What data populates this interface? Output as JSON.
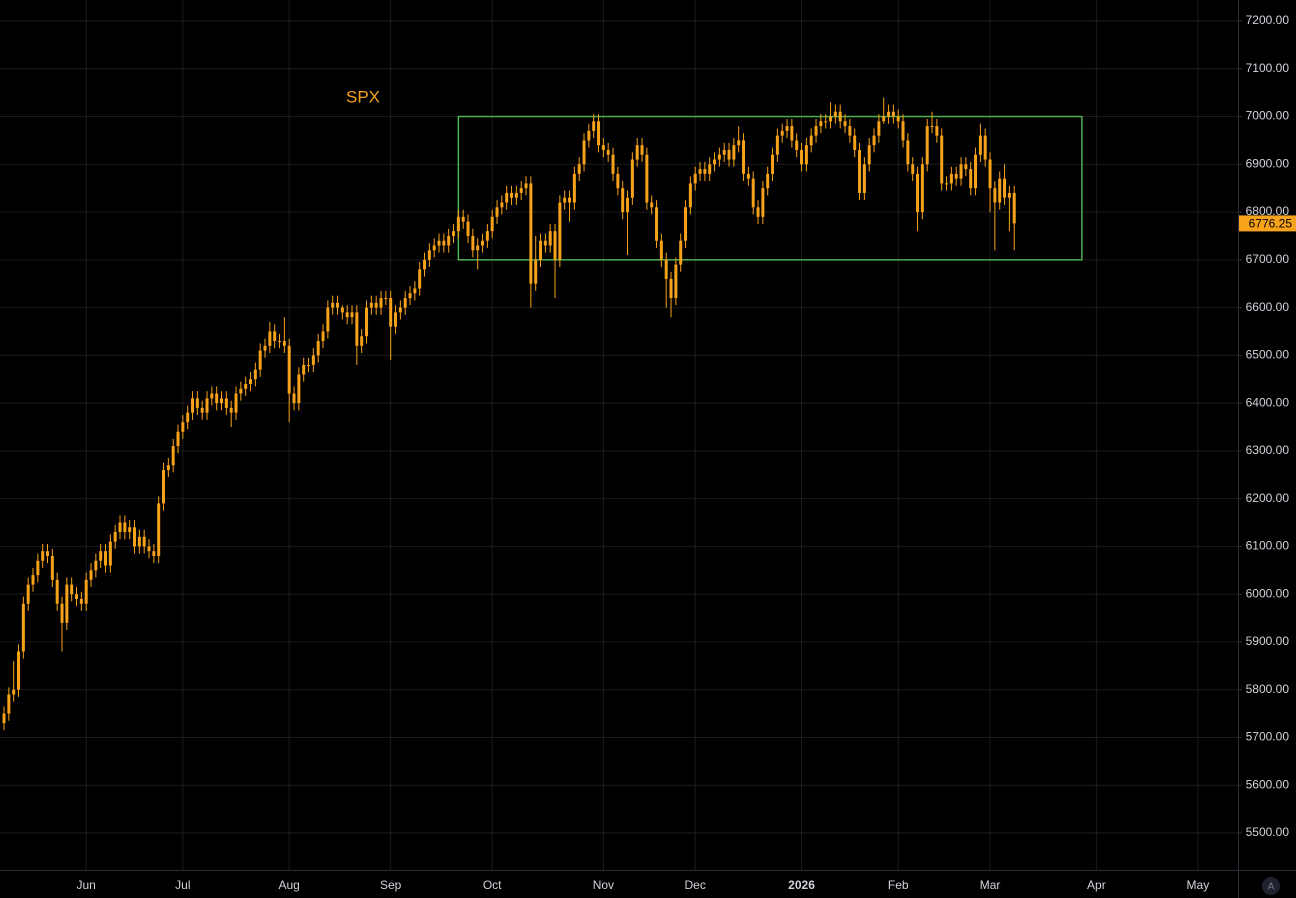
{
  "chart_data": {
    "type": "candlestick",
    "annotation": "SPX",
    "color": "#f7a21b",
    "xlim": [
      -0.83,
      255.3
    ],
    "xticks": [
      {
        "value": 17,
        "label": "Jun"
      },
      {
        "value": 37,
        "label": "Jul"
      },
      {
        "value": 59,
        "label": "Aug"
      },
      {
        "value": 80,
        "label": "Sep"
      },
      {
        "value": 101,
        "label": "Oct"
      },
      {
        "value": 124,
        "label": "Nov"
      },
      {
        "value": 143,
        "label": "Dec"
      },
      {
        "value": 165,
        "label": "2026"
      },
      {
        "value": 185,
        "label": "Feb"
      },
      {
        "value": 204,
        "label": "Mar"
      },
      {
        "value": 226,
        "label": "Apr"
      },
      {
        "value": 247,
        "label": "May"
      }
    ],
    "ylim": [
      5422.5,
      7244
    ],
    "yticks": [
      {
        "value": 5500,
        "label": "5500.00"
      },
      {
        "value": 5600,
        "label": "5600.00"
      },
      {
        "value": 5700,
        "label": "5700.00"
      },
      {
        "value": 5800,
        "label": "5800.00"
      },
      {
        "value": 5900,
        "label": "5900.00"
      },
      {
        "value": 6000,
        "label": "6000.00"
      },
      {
        "value": 6100,
        "label": "6100.00"
      },
      {
        "value": 6200,
        "label": "6200.00"
      },
      {
        "value": 6300,
        "label": "6300.00"
      },
      {
        "value": 6400,
        "label": "6400.00"
      },
      {
        "value": 6500,
        "label": "6500.00"
      },
      {
        "value": 6600,
        "label": "6600.00"
      },
      {
        "value": 6700,
        "label": "6700.00"
      },
      {
        "value": 6800,
        "label": "6800.00"
      },
      {
        "value": 6900,
        "label": "6900.00"
      },
      {
        "value": 7000,
        "label": "7000.00"
      },
      {
        "value": 7100,
        "label": "7100.00"
      },
      {
        "value": 7200,
        "label": "7200.00"
      }
    ],
    "grid": true,
    "range_box": {
      "top": 7000,
      "bottom": 6700,
      "start": 94,
      "end": 223,
      "color": "#4caf50"
    },
    "auto_scale_label": "A",
    "open": [
      5730,
      5750,
      5790,
      5800,
      5880,
      5980,
      6020,
      6040,
      6070,
      6090,
      6080,
      6030,
      5980,
      5940,
      6020,
      6000,
      5990,
      5980,
      6030,
      6050,
      6070,
      6090,
      6060,
      6110,
      6130,
      6150,
      6130,
      6140,
      6100,
      6120,
      6100,
      6090,
      6080,
      6190,
      6260,
      6270,
      6310,
      6340,
      6360,
      6380,
      6410,
      6390,
      6380,
      6410,
      6420,
      6400,
      6410,
      6390,
      6380,
      6420,
      6430,
      6440,
      6450,
      6470,
      6510,
      6520,
      6550,
      6530,
      6530,
      6520,
      6420,
      6400,
      6460,
      6480,
      6480,
      6500,
      6530,
      6550,
      6600,
      6610,
      6600,
      6590,
      6580,
      6590,
      6520,
      6540,
      6600,
      6610,
      6600,
      6620,
      6620,
      6560,
      6590,
      6600,
      6620,
      6630,
      6640,
      6680,
      6700,
      6720,
      6730,
      6740,
      6730,
      6750,
      6760,
      6790,
      6780,
      6750,
      6720,
      6730,
      6740,
      6760,
      6790,
      6810,
      6820,
      6840,
      6830,
      6840,
      6850,
      6860,
      6650,
      6700,
      6740,
      6730,
      6760,
      6700,
      6820,
      6830,
      6820,
      6880,
      6900,
      6950,
      6970,
      6990,
      6940,
      6930,
      6920,
      6880,
      6850,
      6800,
      6830,
      6910,
      6940,
      6920,
      6820,
      6810,
      6740,
      6700,
      6660,
      6620,
      6690,
      6740,
      6810,
      6860,
      6880,
      6890,
      6880,
      6900,
      6910,
      6920,
      6930,
      6910,
      6940,
      6950,
      6880,
      6870,
      6810,
      6790,
      6850,
      6880,
      6920,
      6960,
      6970,
      6980,
      6950,
      6930,
      6900,
      6940,
      6960,
      6980,
      6990,
      6990,
      7000,
      7010,
      6990,
      6980,
      6960,
      6930,
      6840,
      6900,
      6940,
      6960,
      6990,
      7000,
      7010,
      7000,
      6990,
      6950,
      6900,
      6880,
      6800,
      6900,
      6980,
      6980,
      6960,
      6860,
      6860,
      6880,
      6870,
      6900,
      6890,
      6850,
      6920,
      6960,
      6910,
      6850,
      6820,
      6870,
      6830,
      6840
    ],
    "high": [
      5765,
      5805,
      5860,
      5895,
      5995,
      6035,
      6055,
      6085,
      6105,
      6105,
      6095,
      6045,
      5995,
      6035,
      6035,
      6015,
      6005,
      6045,
      6065,
      6085,
      6105,
      6105,
      6125,
      6145,
      6165,
      6165,
      6155,
      6155,
      6135,
      6135,
      6115,
      6105,
      6205,
      6275,
      6285,
      6325,
      6355,
      6375,
      6395,
      6425,
      6425,
      6405,
      6425,
      6435,
      6435,
      6425,
      6425,
      6405,
      6435,
      6445,
      6455,
      6465,
      6485,
      6525,
      6535,
      6570,
      6565,
      6545,
      6580,
      6535,
      6435,
      6475,
      6495,
      6495,
      6515,
      6545,
      6565,
      6615,
      6625,
      6625,
      6605,
      6605,
      6605,
      6605,
      6555,
      6615,
      6625,
      6625,
      6635,
      6635,
      6635,
      6605,
      6615,
      6635,
      6645,
      6655,
      6695,
      6715,
      6735,
      6745,
      6755,
      6755,
      6765,
      6775,
      6805,
      6805,
      6795,
      6765,
      6745,
      6755,
      6775,
      6805,
      6825,
      6835,
      6855,
      6855,
      6855,
      6865,
      6875,
      6875,
      6750,
      6755,
      6755,
      6775,
      6775,
      6835,
      6845,
      6845,
      6895,
      6915,
      6965,
      6985,
      7005,
      7005,
      6955,
      6945,
      6935,
      6895,
      6865,
      6845,
      6925,
      6955,
      6955,
      6935,
      6835,
      6825,
      6755,
      6715,
      6675,
      6705,
      6755,
      6825,
      6875,
      6895,
      6905,
      6905,
      6915,
      6925,
      6935,
      6945,
      6945,
      6955,
      6980,
      6965,
      6895,
      6885,
      6825,
      6865,
      6895,
      6935,
      6975,
      6985,
      6995,
      6995,
      6965,
      6945,
      6955,
      6975,
      6995,
      7005,
      7005,
      7030,
      7025,
      7025,
      7005,
      6995,
      6975,
      6945,
      6915,
      6955,
      6975,
      7005,
      7040,
      7025,
      7025,
      7015,
      7005,
      6965,
      6915,
      6895,
      6915,
      6995,
      7010,
      6995,
      6975,
      6875,
      6895,
      6895,
      6915,
      6915,
      6905,
      6935,
      6985,
      6975,
      6925,
      6865,
      6885,
      6900,
      6855,
      6855
    ],
    "low": [
      5715,
      5735,
      5775,
      5785,
      5865,
      5965,
      6005,
      6025,
      6055,
      6065,
      6015,
      5965,
      5880,
      5925,
      5985,
      5975,
      5965,
      5965,
      6015,
      6035,
      6055,
      6045,
      6045,
      6095,
      6115,
      6115,
      6115,
      6085,
      6085,
      6085,
      6075,
      6065,
      6065,
      6175,
      6245,
      6255,
      6295,
      6325,
      6345,
      6365,
      6375,
      6365,
      6365,
      6395,
      6385,
      6385,
      6375,
      6350,
      6365,
      6405,
      6415,
      6425,
      6435,
      6455,
      6495,
      6505,
      6515,
      6515,
      6505,
      6360,
      6385,
      6385,
      6445,
      6465,
      6465,
      6485,
      6515,
      6535,
      6585,
      6585,
      6575,
      6565,
      6565,
      6480,
      6505,
      6525,
      6585,
      6585,
      6585,
      6605,
      6490,
      6545,
      6575,
      6585,
      6605,
      6615,
      6625,
      6665,
      6685,
      6705,
      6715,
      6715,
      6715,
      6735,
      6745,
      6765,
      6735,
      6705,
      6680,
      6715,
      6725,
      6745,
      6775,
      6795,
      6805,
      6815,
      6815,
      6825,
      6835,
      6600,
      6635,
      6685,
      6715,
      6715,
      6620,
      6685,
      6805,
      6780,
      6805,
      6865,
      6885,
      6935,
      6955,
      6925,
      6915,
      6905,
      6865,
      6835,
      6785,
      6710,
      6815,
      6895,
      6905,
      6805,
      6795,
      6725,
      6685,
      6600,
      6580,
      6605,
      6675,
      6725,
      6795,
      6845,
      6865,
      6865,
      6865,
      6885,
      6895,
      6905,
      6895,
      6895,
      6925,
      6865,
      6855,
      6795,
      6775,
      6775,
      6835,
      6865,
      6905,
      6945,
      6955,
      6935,
      6915,
      6885,
      6885,
      6925,
      6945,
      6965,
      6975,
      6975,
      6985,
      6975,
      6965,
      6945,
      6915,
      6825,
      6825,
      6885,
      6925,
      6945,
      6985,
      6985,
      6985,
      6975,
      6935,
      6885,
      6865,
      6760,
      6785,
      6885,
      6965,
      6945,
      6845,
      6845,
      6845,
      6855,
      6855,
      6875,
      6835,
      6835,
      6905,
      6895,
      6800,
      6720,
      6805,
      6815,
      6760,
      6720
    ],
    "close": [
      5750,
      5790,
      5800,
      5880,
      5980,
      6020,
      6040,
      6070,
      6090,
      6080,
      6030,
      5980,
      5940,
      6020,
      6000,
      5990,
      5980,
      6030,
      6050,
      6070,
      6090,
      6060,
      6110,
      6130,
      6150,
      6130,
      6140,
      6100,
      6120,
      6100,
      6090,
      6080,
      6190,
      6260,
      6270,
      6310,
      6340,
      6360,
      6380,
      6410,
      6390,
      6380,
      6410,
      6420,
      6400,
      6410,
      6390,
      6380,
      6420,
      6430,
      6440,
      6450,
      6470,
      6510,
      6520,
      6550,
      6530,
      6530,
      6520,
      6420,
      6400,
      6460,
      6480,
      6480,
      6500,
      6530,
      6550,
      6600,
      6610,
      6600,
      6590,
      6580,
      6590,
      6520,
      6540,
      6600,
      6610,
      6600,
      6620,
      6620,
      6560,
      6590,
      6600,
      6620,
      6630,
      6640,
      6680,
      6700,
      6720,
      6730,
      6740,
      6730,
      6750,
      6760,
      6790,
      6780,
      6750,
      6720,
      6730,
      6740,
      6760,
      6790,
      6810,
      6820,
      6840,
      6830,
      6840,
      6850,
      6860,
      6650,
      6700,
      6740,
      6730,
      6760,
      6700,
      6820,
      6830,
      6820,
      6880,
      6900,
      6950,
      6970,
      6990,
      6940,
      6930,
      6920,
      6880,
      6850,
      6800,
      6830,
      6910,
      6940,
      6920,
      6820,
      6810,
      6740,
      6700,
      6660,
      6620,
      6690,
      6740,
      6810,
      6860,
      6880,
      6890,
      6880,
      6900,
      6910,
      6920,
      6930,
      6910,
      6940,
      6950,
      6880,
      6870,
      6810,
      6790,
      6850,
      6880,
      6920,
      6960,
      6970,
      6980,
      6950,
      6930,
      6900,
      6940,
      6960,
      6980,
      6990,
      6990,
      7000,
      7010,
      6990,
      6980,
      6960,
      6930,
      6840,
      6900,
      6940,
      6960,
      6990,
      7000,
      7010,
      7000,
      6990,
      6950,
      6900,
      6880,
      6800,
      6900,
      6980,
      6980,
      6960,
      6860,
      6860,
      6880,
      6870,
      6900,
      6890,
      6850,
      6920,
      6960,
      6910,
      6850,
      6820,
      6870,
      6830,
      6840,
      6776.25
    ]
  }
}
